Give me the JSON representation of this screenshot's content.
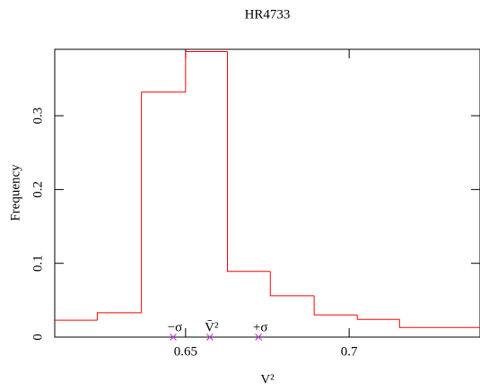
{
  "chart_data": {
    "type": "histogram",
    "title": "HR4733",
    "x_label": "V²",
    "y_label": "Frequency",
    "bins": [
      0.61,
      0.623,
      0.6365,
      0.65,
      0.6628,
      0.6759,
      0.6893,
      0.7025,
      0.7154,
      0.74
    ],
    "counts": [
      0.023,
      0.033,
      0.332,
      0.387,
      0.089,
      0.056,
      0.03,
      0.024,
      0.013
    ],
    "color": "#ff0000",
    "xlim": [
      0.61,
      0.74
    ],
    "ylim": [
      0,
      0.39
    ],
    "xticks": [
      0.65,
      0.7
    ],
    "yticks": [
      0,
      0.1,
      0.2,
      0.3
    ],
    "markers": [
      {
        "label": "−σ",
        "x": 0.6462,
        "y": 0
      },
      {
        "label": "V̄²",
        "x": 0.6574,
        "y": 0
      },
      {
        "label": "+σ",
        "x": 0.6723,
        "y": 0
      }
    ],
    "marker_color": "#cc33cc"
  }
}
